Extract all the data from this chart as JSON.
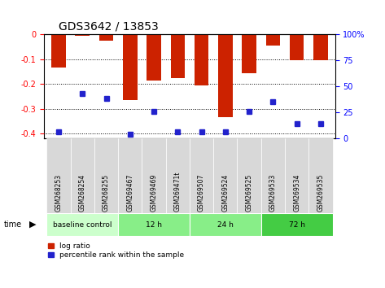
{
  "title": "GDS3642 / 13853",
  "samples": [
    "GSM268253",
    "GSM268254",
    "GSM268255",
    "GSM269467",
    "GSM269469",
    "GSM269471t",
    "GSM269507",
    "GSM269524",
    "GSM269525",
    "GSM269533",
    "GSM269534",
    "GSM269535"
  ],
  "log_ratio": [
    -0.135,
    -0.005,
    -0.025,
    -0.265,
    -0.185,
    -0.175,
    -0.205,
    -0.335,
    -0.155,
    -0.045,
    -0.105,
    -0.105
  ],
  "percentile_rank": [
    6,
    43,
    38,
    4,
    26,
    6,
    6,
    6,
    26,
    35,
    14,
    14
  ],
  "ylim_min": -0.42,
  "ylim_max": 0.0,
  "yticks": [
    0.0,
    -0.1,
    -0.2,
    -0.3,
    -0.4
  ],
  "ytick_labels": [
    "0",
    "-0.1",
    "-0.2",
    "-0.3",
    "-0.4"
  ],
  "right_yticks": [
    0,
    25,
    50,
    75,
    100
  ],
  "bar_color": "#cc2200",
  "dot_color": "#2222cc",
  "groups": [
    {
      "label": "baseline control",
      "start": 0,
      "end": 3,
      "color": "#ccffcc"
    },
    {
      "label": "12 h",
      "start": 3,
      "end": 6,
      "color": "#88ee88"
    },
    {
      "label": "24 h",
      "start": 6,
      "end": 9,
      "color": "#88ee88"
    },
    {
      "label": "72 h",
      "start": 9,
      "end": 12,
      "color": "#44cc44"
    }
  ],
  "legend_log_ratio": "log ratio",
  "legend_percentile": "percentile rank within the sample",
  "time_label": "time",
  "bar_width": 0.6,
  "dot_size": 18
}
